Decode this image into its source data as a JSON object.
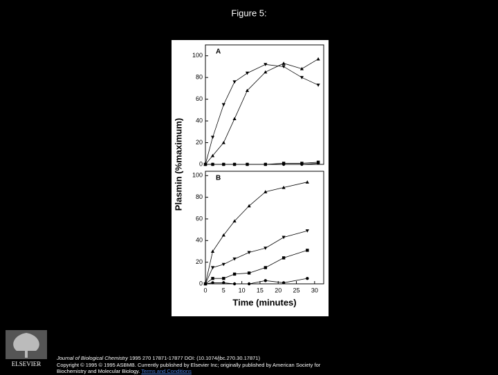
{
  "header": {
    "title": "Figure 5:"
  },
  "chart_data": [
    {
      "type": "line",
      "panel_label": "A",
      "ylabel": "Plasmin (%maximum)",
      "x": [
        0,
        2,
        5,
        8,
        11.5,
        16.5,
        21.5,
        26.5,
        31
      ],
      "xlim": [
        0,
        32.5
      ],
      "ylim": [
        0,
        110
      ],
      "yticks": [
        0,
        20,
        40,
        60,
        80,
        100
      ],
      "series": [
        {
          "color": "#000000",
          "marker": "triangle-down",
          "values": [
            0,
            25,
            55,
            76,
            84,
            92,
            90,
            80,
            73
          ]
        },
        {
          "color": "#000000",
          "marker": "triangle-up",
          "values": [
            0,
            8,
            20,
            42,
            68,
            85,
            93,
            88,
            97
          ]
        },
        {
          "color": "#000000",
          "marker": "circle",
          "values": [
            0,
            0,
            0,
            0,
            0,
            0,
            0,
            0,
            1
          ]
        },
        {
          "color": "#000000",
          "marker": "square",
          "values": [
            0,
            0,
            0,
            0,
            0,
            0,
            1,
            1,
            2
          ]
        }
      ]
    },
    {
      "type": "line",
      "panel_label": "B",
      "xlabel": "Time (minutes)",
      "x": [
        0,
        2,
        5,
        8,
        12,
        16.5,
        21.5,
        28
      ],
      "xlim": [
        0,
        32.5
      ],
      "ylim": [
        0,
        104
      ],
      "xticks": [
        0,
        5,
        10,
        15,
        20,
        25,
        30
      ],
      "yticks": [
        0,
        20,
        40,
        60,
        80,
        100
      ],
      "series": [
        {
          "color": "#000000",
          "marker": "triangle-up",
          "values": [
            0,
            30,
            45,
            58,
            72,
            85,
            89,
            94
          ]
        },
        {
          "color": "#000000",
          "marker": "triangle-down",
          "values": [
            0,
            15,
            18,
            23,
            29,
            33,
            43,
            49
          ]
        },
        {
          "color": "#000000",
          "marker": "square",
          "values": [
            0,
            5,
            5,
            9,
            10,
            15,
            24,
            31
          ]
        },
        {
          "color": "#000000",
          "marker": "circle",
          "values": [
            0,
            1,
            1,
            0,
            0,
            3,
            1,
            5
          ]
        }
      ]
    }
  ],
  "footer": {
    "journal": "Journal of Biological Chemistry",
    "citation": " 1995 270 17871-17877 DOI: (10.1074/jbc.270.30.17871)",
    "copyright": "Copyright © 1995 © 1995 ASBMB. Currently published by Elsevier Inc; originally published by American Society for Biochemistry and Molecular Biology.",
    "link": "Terms and Conditions"
  },
  "logo": "ELSEVIER"
}
